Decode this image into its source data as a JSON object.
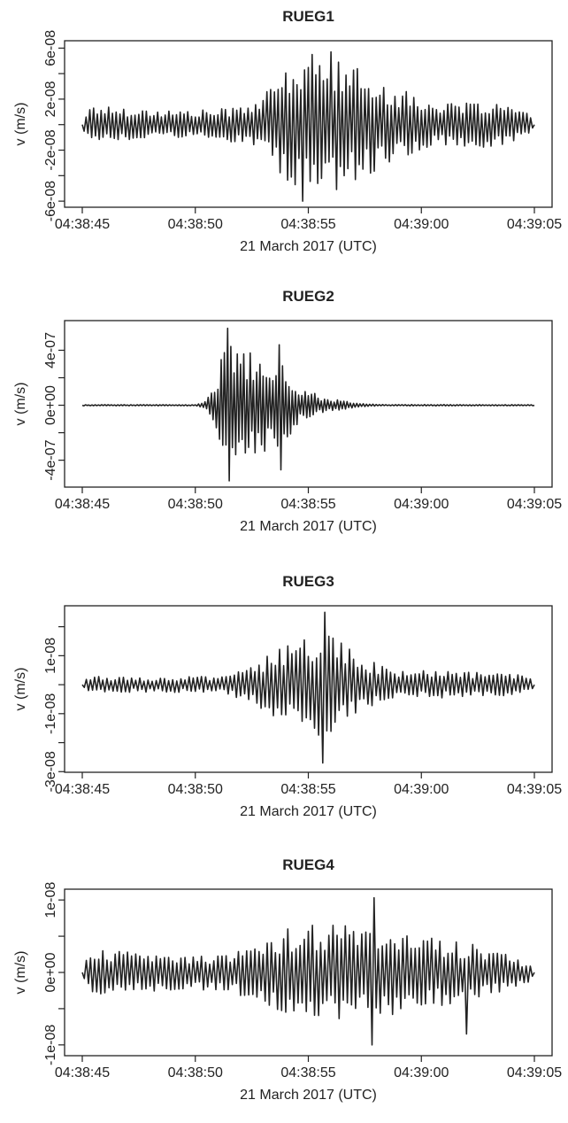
{
  "figure": {
    "xlabel": "21 March 2017 (UTC)",
    "ylabel": "v (m/s)"
  },
  "chart_data": [
    {
      "type": "line",
      "title": "RUEG1",
      "xlabel": "21 March 2017 (UTC)",
      "ylabel": "v (m/s)",
      "x_ticks": [
        "04:38:45",
        "04:38:50",
        "04:38:55",
        "04:39:00",
        "04:39:05"
      ],
      "x_range_seconds": [
        0,
        20
      ],
      "y_ticks": [
        -6e-08,
        -4e-08,
        -2e-08,
        0,
        2e-08,
        4e-08,
        6e-08
      ],
      "y_tick_labels": [
        "-6e-08",
        "",
        "-2e-08",
        "",
        "2e-08",
        "",
        "6e-08"
      ],
      "ylim": [
        -6.2e-08,
        6.3e-08
      ],
      "series": [
        {
          "name": "",
          "envelope": [
            [
              0,
              3e-09
            ],
            [
              0.4,
              1.6e-08
            ],
            [
              1.5,
              1.4e-08
            ],
            [
              3,
              1.2e-08
            ],
            [
              5,
              1.1e-08
            ],
            [
              6.5,
              1.3e-08
            ],
            [
              8,
              2.2e-08
            ],
            [
              9,
              4.5e-08
            ],
            [
              10,
              5.2e-08
            ],
            [
              11,
              5.5e-08
            ],
            [
              12,
              4.6e-08
            ],
            [
              14,
              2.8e-08
            ],
            [
              16,
              1.6e-08
            ],
            [
              18,
              1.8e-08
            ],
            [
              19.5,
              1.2e-08
            ],
            [
              20,
              3e-09
            ]
          ],
          "peaks": [
            [
              9.75,
              -6e-08
            ],
            [
              10.2,
              5.5e-08
            ],
            [
              10.95,
              5.7e-08
            ],
            [
              9.25,
              -4.1e-08
            ]
          ],
          "cycles_per_second": 6
        }
      ]
    },
    {
      "type": "line",
      "title": "RUEG2",
      "xlabel": "21 March 2017 (UTC)",
      "ylabel": "v (m/s)",
      "x_ticks": [
        "04:38:45",
        "04:38:50",
        "04:38:55",
        "04:39:00",
        "04:39:05"
      ],
      "x_range_seconds": [
        0,
        20
      ],
      "y_ticks": [
        -4e-07,
        -2e-07,
        0,
        2e-07,
        4e-07
      ],
      "y_tick_labels": [
        "-4e-07",
        "",
        "0e+00",
        "",
        "4e-07"
      ],
      "ylim": [
        -5.7e-07,
        5.9e-07
      ],
      "series": [
        {
          "name": "",
          "envelope": [
            [
              0,
              4e-09
            ],
            [
              5,
              4e-09
            ],
            [
              5.4,
              2e-08
            ],
            [
              5.8,
              1.2e-07
            ],
            [
              6.3,
              4.5e-07
            ],
            [
              7,
              4e-07
            ],
            [
              8,
              3.5e-07
            ],
            [
              8.8,
              3.2e-07
            ],
            [
              9.5,
              1.5e-07
            ],
            [
              10.5,
              7e-08
            ],
            [
              11.5,
              3.5e-08
            ],
            [
              12.5,
              1e-08
            ],
            [
              13.5,
              5e-09
            ],
            [
              20,
              4e-09
            ]
          ],
          "peaks": [
            [
              6.5,
              5.6e-07
            ],
            [
              6.45,
              -5.5e-07
            ],
            [
              8.7,
              4.4e-07
            ],
            [
              8.85,
              -4.7e-07
            ],
            [
              7.5,
              3.8e-07
            ]
          ],
          "cycles_per_second": 7
        }
      ]
    },
    {
      "type": "line",
      "title": "RUEG3",
      "xlabel": "21 March 2017 (UTC)",
      "ylabel": "v (m/s)",
      "x_ticks": [
        "04:38:45",
        "04:38:50",
        "04:38:55",
        "04:39:00",
        "04:39:05"
      ],
      "x_range_seconds": [
        0,
        20
      ],
      "y_ticks": [
        -3e-08,
        -2e-08,
        -1e-08,
        0,
        1e-08,
        2e-08
      ],
      "y_tick_labels": [
        "-3e-08",
        "",
        "-1e-08",
        "",
        "1e-08",
        ""
      ],
      "ylim": [
        -2.9e-08,
        2.6e-08
      ],
      "series": [
        {
          "name": "",
          "envelope": [
            [
              0,
              1.5e-09
            ],
            [
              0.5,
              3e-09
            ],
            [
              3,
              2.5e-09
            ],
            [
              6,
              3e-09
            ],
            [
              7.5,
              6e-09
            ],
            [
              8.5,
              1.2e-08
            ],
            [
              9.5,
              1.5e-08
            ],
            [
              10.5,
              1.8e-08
            ],
            [
              11.5,
              1.5e-08
            ],
            [
              12.5,
              9e-09
            ],
            [
              14,
              5e-09
            ],
            [
              17,
              4.5e-09
            ],
            [
              19.5,
              3.5e-09
            ],
            [
              20,
              1.5e-09
            ]
          ],
          "peaks": [
            [
              10.65,
              2.5e-08
            ],
            [
              10.7,
              -2.7e-08
            ],
            [
              10.2,
              -1.5e-08
            ]
          ],
          "cycles_per_second": 5.5
        }
      ]
    },
    {
      "type": "line",
      "title": "RUEG4",
      "xlabel": "21 March 2017 (UTC)",
      "ylabel": "v (m/s)",
      "x_ticks": [
        "04:38:45",
        "04:38:50",
        "04:38:55",
        "04:39:00",
        "04:39:05"
      ],
      "x_range_seconds": [
        0,
        20
      ],
      "y_ticks": [
        -1e-08,
        -5e-09,
        0,
        5e-09,
        1e-08
      ],
      "y_tick_labels": [
        "-1e-08",
        "",
        "0e+00",
        "",
        "1e-08"
      ],
      "ylim": [
        -1.1e-08,
        1.1e-08
      ],
      "series": [
        {
          "name": "",
          "envelope": [
            [
              0,
              1e-09
            ],
            [
              0.5,
              3e-09
            ],
            [
              2,
              3e-09
            ],
            [
              4,
              2.5e-09
            ],
            [
              6,
              2.5e-09
            ],
            [
              8,
              4e-09
            ],
            [
              9,
              6e-09
            ],
            [
              10.5,
              6.5e-09
            ],
            [
              12,
              6.5e-09
            ],
            [
              14,
              6e-09
            ],
            [
              16,
              4.5e-09
            ],
            [
              18,
              3.5e-09
            ],
            [
              20,
              1e-09
            ]
          ],
          "peaks": [
            [
              12.9,
              1.03e-08
            ],
            [
              12.75,
              -1e-08
            ],
            [
              10.2,
              6.5e-09
            ],
            [
              17,
              -8.5e-09
            ]
          ],
          "cycles_per_second": 5.5
        }
      ]
    }
  ]
}
